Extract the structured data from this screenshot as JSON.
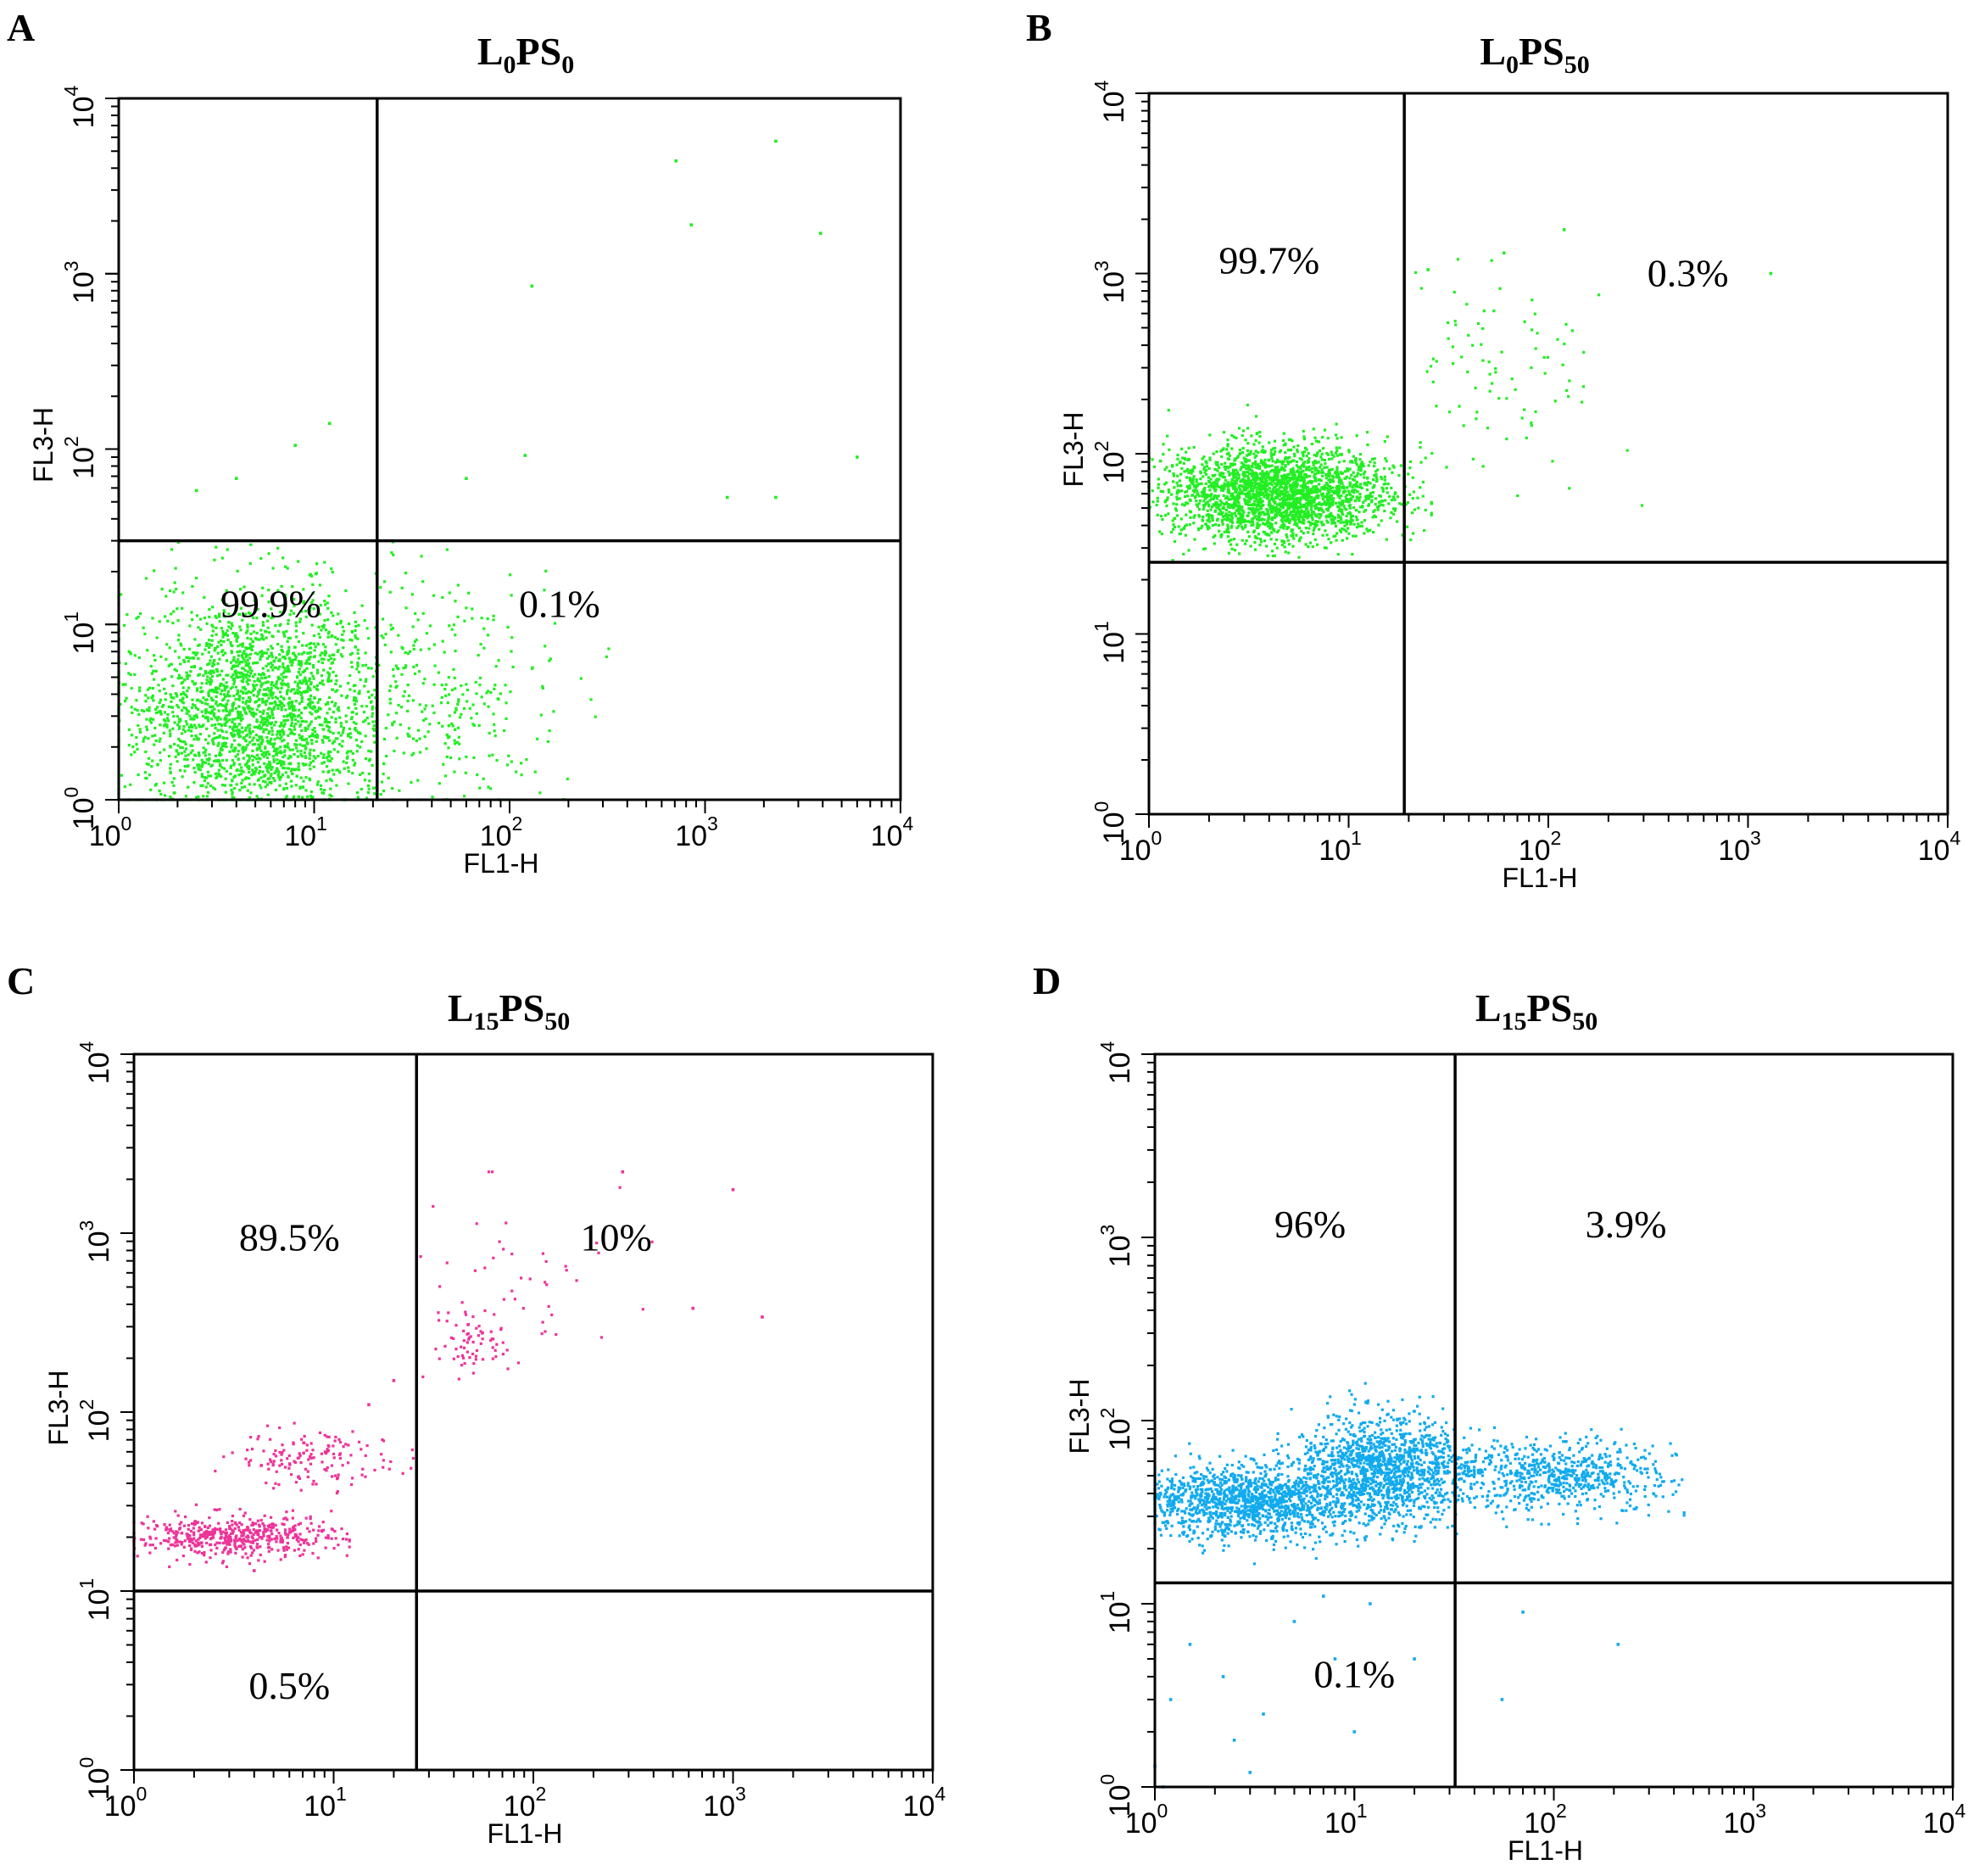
{
  "panels": [
    {
      "letter": "A",
      "title_main1": "L",
      "title_sub1": "0",
      "title_main2": "PS",
      "title_sub2": "0"
    },
    {
      "letter": "B",
      "title_main1": "L",
      "title_sub1": "0",
      "title_main2": "PS",
      "title_sub2": "50"
    },
    {
      "letter": "C",
      "title_main1": "L",
      "title_sub1": "15",
      "title_main2": "PS",
      "title_sub2": "50"
    },
    {
      "letter": "D",
      "title_main1": "L",
      "title_sub1": "15",
      "title_main2": "PS",
      "title_sub2": "50"
    }
  ],
  "chart_data": [
    {
      "type": "scatter",
      "title": "L0PS0",
      "xlabel": "FL1-H",
      "ylabel": "FL3-H",
      "xscale": "log",
      "yscale": "log",
      "xlim": [
        1,
        10000
      ],
      "ylim": [
        1,
        10000
      ],
      "xticks": [
        "10^0",
        "10^1",
        "10^2",
        "10^3",
        "10^4"
      ],
      "yticks": [
        "10^0",
        "10^1",
        "10^2",
        "10^3",
        "10^4"
      ],
      "color": "#22ee22",
      "gate": {
        "x": 21,
        "y": 30
      },
      "quadrant_labels": [
        {
          "text": "99.9%",
          "quadrant": "lower-left",
          "x": 6,
          "y": 11
        },
        {
          "text": "0.1%",
          "quadrant": "lower-right",
          "x": 180,
          "y": 11
        }
      ],
      "clusters": [
        {
          "cx": 5,
          "cy": 3,
          "sx": 0.35,
          "sy": 0.35,
          "n": 2600,
          "xmin": 1,
          "xmax": 21,
          "ymin": 1,
          "ymax": 30
        },
        {
          "cx": 40,
          "cy": 4,
          "sx": 0.3,
          "sy": 0.35,
          "n": 380,
          "xmin": 21,
          "xmax": 400,
          "ymin": 1,
          "ymax": 30
        }
      ],
      "points": [
        [
          130,
          850
        ],
        [
          710,
          4400
        ],
        [
          850,
          1900
        ],
        [
          2300,
          5700
        ],
        [
          3900,
          1700
        ],
        [
          12,
          140
        ],
        [
          8,
          105
        ],
        [
          4,
          68
        ],
        [
          2.5,
          58
        ],
        [
          120,
          92
        ],
        [
          6000,
          90
        ],
        [
          60,
          68
        ],
        [
          2300,
          53
        ],
        [
          1300,
          53
        ]
      ]
    },
    {
      "type": "scatter",
      "title": "L0PS50",
      "xlabel": "FL1-H",
      "ylabel": "FL3-H",
      "xscale": "log",
      "yscale": "log",
      "xlim": [
        1,
        10000
      ],
      "ylim": [
        1,
        10000
      ],
      "xticks": [
        "10^0",
        "10^1",
        "10^2",
        "10^3",
        "10^4"
      ],
      "yticks": [
        "10^0",
        "10^1",
        "10^2",
        "10^3",
        "10^4"
      ],
      "color": "#22ee22",
      "gate": {
        "x": 19,
        "y": 25
      },
      "quadrant_labels": [
        {
          "text": "99.7%",
          "quadrant": "upper-left",
          "x": 4,
          "y": 1000
        },
        {
          "text": "0.3%",
          "quadrant": "upper-right",
          "x": 500,
          "y": 850
        }
      ],
      "clusters": [
        {
          "cx": 4.5,
          "cy": 60,
          "sx": 0.28,
          "sy": 0.13,
          "n": 2400,
          "xmin": 1,
          "xmax": 26,
          "ymin": 25,
          "ymax": 300
        },
        {
          "cx": 60,
          "cy": 250,
          "sx": 0.35,
          "sy": 0.3,
          "n": 100,
          "xmin": 19,
          "xmax": 300,
          "ymin": 40,
          "ymax": 1800
        }
      ],
      "points": [
        [
          1300,
          1000
        ],
        [
          25,
          1050
        ],
        [
          120,
          1750
        ],
        [
          60,
          1300
        ]
      ]
    },
    {
      "type": "scatter",
      "title": "L15PS50",
      "xlabel": "FL1-H",
      "ylabel": "FL3-H",
      "xscale": "log",
      "yscale": "log",
      "xlim": [
        1,
        10000
      ],
      "ylim": [
        1,
        10000
      ],
      "xticks": [
        "10^0",
        "10^1",
        "10^2",
        "10^3",
        "10^4"
      ],
      "yticks": [
        "10^0",
        "10^1",
        "10^2",
        "10^3",
        "10^4"
      ],
      "color": "#ee3399",
      "gate": {
        "x": 26,
        "y": 10
      },
      "quadrant_labels": [
        {
          "text": "89.5%",
          "quadrant": "upper-left",
          "x": 6,
          "y": 800
        },
        {
          "text": "10%",
          "quadrant": "upper-right",
          "x": 260,
          "y": 800
        },
        {
          "text": "0.5%",
          "quadrant": "lower-left",
          "x": 6,
          "y": 2.5
        }
      ],
      "clusters": [
        {
          "cx": 3.2,
          "cy": 20,
          "sx": 0.25,
          "sy": 0.06,
          "n": 520,
          "xmin": 1,
          "xmax": 12,
          "ymin": 10,
          "ymax": 35
        },
        {
          "cx": 8,
          "cy": 55,
          "sx": 0.2,
          "sy": 0.08,
          "n": 150,
          "xmin": 2.5,
          "xmax": 26,
          "ymin": 30,
          "ymax": 110
        },
        {
          "cx": 50,
          "cy": 260,
          "sx": 0.08,
          "sy": 0.09,
          "n": 60,
          "xmin": 26,
          "xmax": 120,
          "ymin": 120,
          "ymax": 600
        },
        {
          "cx": 80,
          "cy": 500,
          "sx": 0.3,
          "sy": 0.3,
          "n": 55,
          "xmin": 26,
          "xmax": 400,
          "ymin": 30,
          "ymax": 2200
        }
      ],
      "points": [
        [
          1000,
          1750
        ],
        [
          1400,
          340
        ],
        [
          630,
          380
        ],
        [
          280,
          2200
        ],
        [
          15,
          110
        ],
        [
          20,
          150
        ],
        [
          4,
          13
        ]
      ]
    },
    {
      "type": "scatter",
      "title": "L15PS50",
      "xlabel": "FL1-H",
      "ylabel": "FL3-H",
      "xscale": "log",
      "yscale": "log",
      "xlim": [
        1,
        10000
      ],
      "ylim": [
        1,
        10000
      ],
      "xticks": [
        "10^0",
        "10^1",
        "10^2",
        "10^3",
        "10^4"
      ],
      "yticks": [
        "10^0",
        "10^1",
        "10^2",
        "10^3",
        "10^4"
      ],
      "color": "#11aaee",
      "gate": {
        "x": 32,
        "y": 13
      },
      "quadrant_labels": [
        {
          "text": "96%",
          "quadrant": "upper-left",
          "x": 6,
          "y": 1000
        },
        {
          "text": "3.9%",
          "quadrant": "upper-right",
          "x": 230,
          "y": 1000
        },
        {
          "text": "0.1%",
          "quadrant": "lower-left",
          "x": 10,
          "y": 3.5
        }
      ],
      "clusters": [
        {
          "cx": 3,
          "cy": 36,
          "sx": 0.3,
          "sy": 0.1,
          "n": 1400,
          "xmin": 1,
          "xmax": 20,
          "ymin": 13,
          "ymax": 120
        },
        {
          "cx": 14,
          "cy": 55,
          "sx": 0.22,
          "sy": 0.14,
          "n": 1300,
          "xmin": 3,
          "xmax": 40,
          "ymin": 13,
          "ymax": 250
        },
        {
          "cx": 100,
          "cy": 50,
          "sx": 0.3,
          "sy": 0.1,
          "n": 700,
          "xmin": 32,
          "xmax": 450,
          "ymin": 15,
          "ymax": 250
        }
      ],
      "points": [
        [
          3,
          1.2
        ],
        [
          2.5,
          1.8
        ],
        [
          1,
          1.3
        ],
        [
          1.2,
          3
        ],
        [
          5,
          8
        ],
        [
          8,
          5
        ],
        [
          1.5,
          6
        ],
        [
          2.2,
          4
        ],
        [
          3.5,
          2.5
        ],
        [
          7,
          11
        ],
        [
          12,
          10
        ],
        [
          20,
          5
        ],
        [
          55,
          3
        ],
        [
          210,
          6
        ],
        [
          70,
          9
        ],
        [
          1.1,
          1.0
        ],
        [
          10,
          2
        ]
      ]
    }
  ]
}
